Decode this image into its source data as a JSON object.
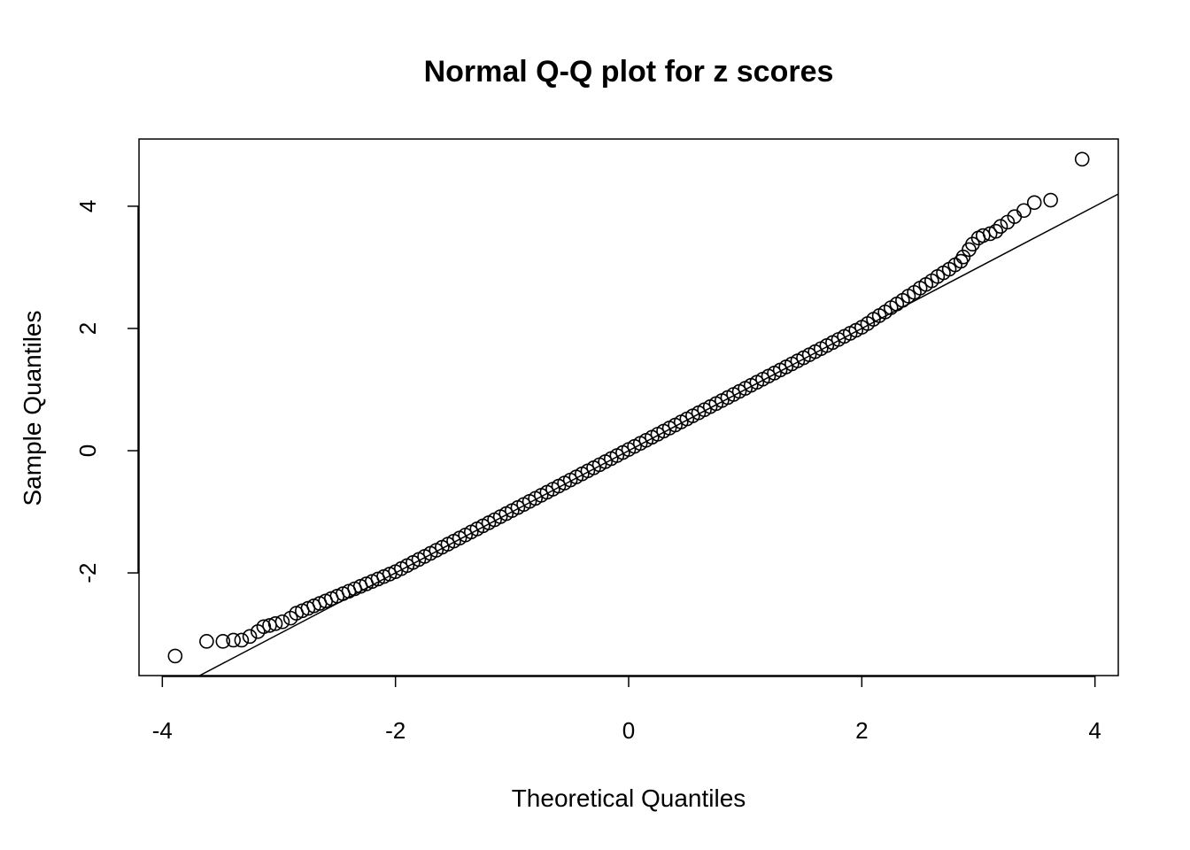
{
  "chart_data": {
    "type": "scatter",
    "title": "Normal Q-Q plot for z scores",
    "xlabel": "Theoretical Quantiles",
    "ylabel": "Sample Quantiles",
    "xlim": [
      -4.2,
      4.2
    ],
    "ylim": [
      -3.68,
      5.1
    ],
    "xticks": [
      -4,
      -2,
      0,
      2,
      4
    ],
    "yticks": [
      -2,
      0,
      2,
      4
    ],
    "xtick_labels": [
      "-4",
      "-2",
      "0",
      "2",
      "4"
    ],
    "ytick_labels": [
      "-2",
      "0",
      "2",
      "4"
    ],
    "grid": false,
    "marker": "open-circle",
    "color": "#000000",
    "reference_line": {
      "intercept": 0.0,
      "slope": 1.0
    },
    "points": [
      [
        -3.89,
        -3.36
      ],
      [
        -3.62,
        -3.12
      ],
      [
        -3.48,
        -3.12
      ],
      [
        -3.39,
        -3.1
      ],
      [
        -3.32,
        -3.1
      ],
      [
        -3.25,
        -3.04
      ],
      [
        -3.18,
        -2.96
      ],
      [
        -3.13,
        -2.88
      ],
      [
        -3.08,
        -2.86
      ],
      [
        -3.03,
        -2.83
      ],
      [
        -2.97,
        -2.8
      ],
      [
        -2.9,
        -2.74
      ],
      [
        -2.85,
        -2.66
      ],
      [
        -2.8,
        -2.62
      ],
      [
        -2.75,
        -2.58
      ],
      [
        -2.7,
        -2.54
      ],
      [
        -2.65,
        -2.5
      ],
      [
        -2.6,
        -2.46
      ],
      [
        -2.55,
        -2.42
      ],
      [
        -2.5,
        -2.38
      ],
      [
        -2.45,
        -2.34
      ],
      [
        -2.4,
        -2.3
      ],
      [
        -2.35,
        -2.26
      ],
      [
        -2.3,
        -2.22
      ],
      [
        -2.25,
        -2.18
      ],
      [
        -2.2,
        -2.14
      ],
      [
        -2.15,
        -2.1
      ],
      [
        -2.1,
        -2.06
      ],
      [
        -2.05,
        -2.02
      ],
      [
        -2.0,
        -1.98
      ],
      [
        -1.95,
        -1.93
      ],
      [
        -1.9,
        -1.88
      ],
      [
        -1.85,
        -1.83
      ],
      [
        -1.8,
        -1.78
      ],
      [
        -1.75,
        -1.73
      ],
      [
        -1.7,
        -1.68
      ],
      [
        -1.65,
        -1.63
      ],
      [
        -1.6,
        -1.58
      ],
      [
        -1.55,
        -1.53
      ],
      [
        -1.5,
        -1.48
      ],
      [
        -1.45,
        -1.43
      ],
      [
        -1.4,
        -1.38
      ],
      [
        -1.35,
        -1.33
      ],
      [
        -1.3,
        -1.28
      ],
      [
        -1.25,
        -1.23
      ],
      [
        -1.2,
        -1.18
      ],
      [
        -1.15,
        -1.13
      ],
      [
        -1.1,
        -1.08
      ],
      [
        -1.05,
        -1.03
      ],
      [
        -1.0,
        -0.98
      ],
      [
        -0.95,
        -0.93
      ],
      [
        -0.9,
        -0.88
      ],
      [
        -0.85,
        -0.83
      ],
      [
        -0.8,
        -0.78
      ],
      [
        -0.75,
        -0.73
      ],
      [
        -0.7,
        -0.68
      ],
      [
        -0.65,
        -0.63
      ],
      [
        -0.6,
        -0.58
      ],
      [
        -0.55,
        -0.53
      ],
      [
        -0.5,
        -0.48
      ],
      [
        -0.45,
        -0.43
      ],
      [
        -0.4,
        -0.38
      ],
      [
        -0.35,
        -0.33
      ],
      [
        -0.3,
        -0.28
      ],
      [
        -0.25,
        -0.23
      ],
      [
        -0.2,
        -0.18
      ],
      [
        -0.15,
        -0.13
      ],
      [
        -0.1,
        -0.08
      ],
      [
        -0.05,
        -0.03
      ],
      [
        0.0,
        0.02
      ],
      [
        0.05,
        0.07
      ],
      [
        0.1,
        0.12
      ],
      [
        0.15,
        0.17
      ],
      [
        0.2,
        0.22
      ],
      [
        0.25,
        0.27
      ],
      [
        0.3,
        0.32
      ],
      [
        0.35,
        0.37
      ],
      [
        0.4,
        0.42
      ],
      [
        0.45,
        0.47
      ],
      [
        0.5,
        0.52
      ],
      [
        0.55,
        0.57
      ],
      [
        0.6,
        0.62
      ],
      [
        0.65,
        0.67
      ],
      [
        0.7,
        0.72
      ],
      [
        0.75,
        0.77
      ],
      [
        0.8,
        0.82
      ],
      [
        0.85,
        0.87
      ],
      [
        0.9,
        0.92
      ],
      [
        0.95,
        0.97
      ],
      [
        1.0,
        1.02
      ],
      [
        1.05,
        1.07
      ],
      [
        1.1,
        1.12
      ],
      [
        1.15,
        1.17
      ],
      [
        1.2,
        1.22
      ],
      [
        1.25,
        1.27
      ],
      [
        1.3,
        1.32
      ],
      [
        1.35,
        1.37
      ],
      [
        1.4,
        1.42
      ],
      [
        1.45,
        1.47
      ],
      [
        1.5,
        1.52
      ],
      [
        1.55,
        1.57
      ],
      [
        1.6,
        1.62
      ],
      [
        1.65,
        1.67
      ],
      [
        1.7,
        1.72
      ],
      [
        1.75,
        1.77
      ],
      [
        1.8,
        1.82
      ],
      [
        1.85,
        1.87
      ],
      [
        1.9,
        1.92
      ],
      [
        1.95,
        1.97
      ],
      [
        2.0,
        2.02
      ],
      [
        2.05,
        2.08
      ],
      [
        2.1,
        2.15
      ],
      [
        2.15,
        2.21
      ],
      [
        2.2,
        2.27
      ],
      [
        2.25,
        2.34
      ],
      [
        2.3,
        2.4
      ],
      [
        2.35,
        2.46
      ],
      [
        2.4,
        2.53
      ],
      [
        2.45,
        2.59
      ],
      [
        2.5,
        2.66
      ],
      [
        2.55,
        2.72
      ],
      [
        2.6,
        2.78
      ],
      [
        2.65,
        2.85
      ],
      [
        2.7,
        2.91
      ],
      [
        2.75,
        2.97
      ],
      [
        2.8,
        3.04
      ],
      [
        2.85,
        3.1
      ],
      [
        2.87,
        3.17
      ],
      [
        2.92,
        3.29
      ],
      [
        2.95,
        3.38
      ],
      [
        3.0,
        3.48
      ],
      [
        3.04,
        3.52
      ],
      [
        3.1,
        3.55
      ],
      [
        3.15,
        3.59
      ],
      [
        3.19,
        3.67
      ],
      [
        3.25,
        3.74
      ],
      [
        3.31,
        3.83
      ],
      [
        3.39,
        3.93
      ],
      [
        3.48,
        4.06
      ],
      [
        3.62,
        4.1
      ],
      [
        3.89,
        4.77
      ]
    ]
  }
}
